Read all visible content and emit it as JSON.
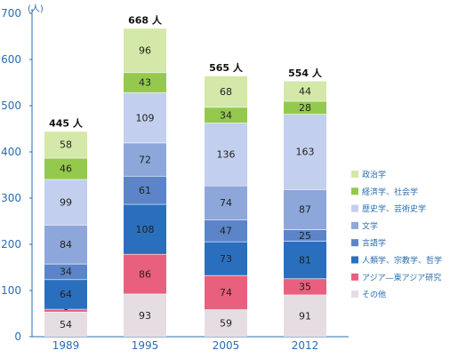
{
  "chart_data": {
    "type": "bar",
    "stacked": true,
    "unit_label": "(人)",
    "categories": [
      "1989",
      "1995",
      "2005",
      "2012"
    ],
    "totals": [
      "445 人",
      "668 人",
      "565 人",
      "554 人"
    ],
    "ylim": [
      0,
      700
    ],
    "yticks": [
      0,
      100,
      200,
      300,
      400,
      500,
      600,
      700
    ],
    "legend_position": "right",
    "series": [
      {
        "name": "その他",
        "color": "#e6dde3",
        "values": [
          54,
          93,
          59,
          91
        ]
      },
      {
        "name": "アジア―東アジア研究",
        "color": "#e8607e",
        "values": [
          6,
          86,
          74,
          35
        ]
      },
      {
        "name": "人類学、宗教学、哲学",
        "color": "#2a6fbd",
        "values": [
          64,
          108,
          73,
          81
        ]
      },
      {
        "name": "言語学",
        "color": "#5b85c8",
        "values": [
          34,
          61,
          47,
          25
        ]
      },
      {
        "name": "文学",
        "color": "#8ea7da",
        "values": [
          84,
          72,
          74,
          87
        ]
      },
      {
        "name": "歴史学、芸術史学",
        "color": "#c3cfee",
        "values": [
          99,
          109,
          136,
          163
        ]
      },
      {
        "name": "経済学、社会学",
        "color": "#95c94d",
        "values": [
          46,
          43,
          34,
          28
        ]
      },
      {
        "name": "政治学",
        "color": "#d4e8a9",
        "values": [
          58,
          96,
          68,
          44
        ]
      }
    ]
  }
}
